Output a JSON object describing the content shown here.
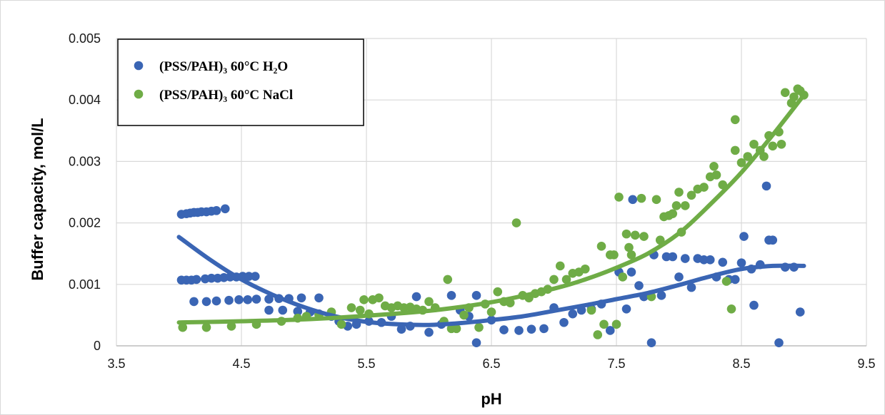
{
  "chart_data": {
    "type": "scatter",
    "title": "",
    "xlabel": "pH",
    "ylabel": "Buffer capacity, mol/L",
    "xlim": [
      3.5,
      9.5
    ],
    "ylim": [
      0,
      0.005
    ],
    "x_ticks": [
      "3.5",
      "4.5",
      "5.5",
      "6.5",
      "7.5",
      "8.5",
      "9.5"
    ],
    "y_ticks": [
      "0",
      "0.001",
      "0.002",
      "0.003",
      "0.004",
      "0.005"
    ],
    "grid": true,
    "legend_position": "top-left",
    "trendline": "polynomial",
    "series": [
      {
        "name": "(PSS/PAH)₃ 60°C H₂O",
        "color": "#3a65b4",
        "points": [
          [
            4.02,
            0.00214
          ],
          [
            4.06,
            0.00215
          ],
          [
            4.09,
            0.00216
          ],
          [
            4.12,
            0.00217
          ],
          [
            4.15,
            0.00217
          ],
          [
            4.18,
            0.00218
          ],
          [
            4.22,
            0.00218
          ],
          [
            4.26,
            0.00219
          ],
          [
            4.3,
            0.0022
          ],
          [
            4.37,
            0.00223
          ],
          [
            4.02,
            0.00107
          ],
          [
            4.06,
            0.00107
          ],
          [
            4.1,
            0.00107
          ],
          [
            4.14,
            0.00108
          ],
          [
            4.21,
            0.00109
          ],
          [
            4.26,
            0.0011
          ],
          [
            4.31,
            0.0011
          ],
          [
            4.36,
            0.00111
          ],
          [
            4.41,
            0.00112
          ],
          [
            4.46,
            0.00112
          ],
          [
            4.51,
            0.00113
          ],
          [
            4.56,
            0.00113
          ],
          [
            4.61,
            0.00113
          ],
          [
            4.12,
            0.00072
          ],
          [
            4.22,
            0.00072
          ],
          [
            4.3,
            0.00073
          ],
          [
            4.4,
            0.00074
          ],
          [
            4.48,
            0.00075
          ],
          [
            4.55,
            0.00075
          ],
          [
            4.62,
            0.00076
          ],
          [
            4.72,
            0.00076
          ],
          [
            4.8,
            0.00077
          ],
          [
            4.88,
            0.00077
          ],
          [
            4.98,
            0.00078
          ],
          [
            5.12,
            0.00078
          ],
          [
            4.72,
            0.00058
          ],
          [
            4.83,
            0.00058
          ],
          [
            4.95,
            0.00056
          ],
          [
            5.05,
            0.00055
          ],
          [
            5.12,
            0.00052
          ],
          [
            5.22,
            0.00048
          ],
          [
            5.28,
            0.0004
          ],
          [
            5.35,
            0.00032
          ],
          [
            5.42,
            0.00035
          ],
          [
            5.52,
            0.0004
          ],
          [
            5.62,
            0.00038
          ],
          [
            5.7,
            0.00048
          ],
          [
            5.78,
            0.00027
          ],
          [
            5.85,
            0.00032
          ],
          [
            5.9,
            0.0008
          ],
          [
            6.0,
            0.00022
          ],
          [
            6.1,
            0.00035
          ],
          [
            6.18,
            0.00082
          ],
          [
            6.25,
            0.00058
          ],
          [
            6.32,
            0.00048
          ],
          [
            6.38,
            0.00082
          ],
          [
            6.38,
            5e-05
          ],
          [
            6.5,
            0.00042
          ],
          [
            6.6,
            0.00026
          ],
          [
            6.72,
            0.00025
          ],
          [
            6.82,
            0.00027
          ],
          [
            6.92,
            0.00028
          ],
          [
            7.0,
            0.00062
          ],
          [
            7.08,
            0.00038
          ],
          [
            7.15,
            0.00052
          ],
          [
            7.22,
            0.00058
          ],
          [
            7.3,
            0.0006
          ],
          [
            7.38,
            0.00068
          ],
          [
            7.45,
            0.00025
          ],
          [
            7.52,
            0.0012
          ],
          [
            7.58,
            0.0006
          ],
          [
            7.62,
            0.0012
          ],
          [
            7.68,
            0.00098
          ],
          [
            7.72,
            0.0008
          ],
          [
            7.78,
            5e-05
          ],
          [
            7.8,
            0.00148
          ],
          [
            7.86,
            0.00082
          ],
          [
            7.9,
            0.00145
          ],
          [
            7.95,
            0.00145
          ],
          [
            8.0,
            0.00112
          ],
          [
            8.05,
            0.00142
          ],
          [
            8.1,
            0.00095
          ],
          [
            8.15,
            0.00142
          ],
          [
            8.2,
            0.0014
          ],
          [
            8.25,
            0.0014
          ],
          [
            8.3,
            0.00112
          ],
          [
            8.35,
            0.00136
          ],
          [
            8.4,
            0.00108
          ],
          [
            8.45,
            0.00108
          ],
          [
            8.5,
            0.00135
          ],
          [
            8.52,
            0.00178
          ],
          [
            8.58,
            0.00125
          ],
          [
            8.6,
            0.00066
          ],
          [
            8.65,
            0.00132
          ],
          [
            8.7,
            0.0026
          ],
          [
            8.72,
            0.00172
          ],
          [
            8.75,
            0.00172
          ],
          [
            8.8,
            5e-05
          ],
          [
            8.85,
            0.00128
          ],
          [
            8.92,
            0.00128
          ],
          [
            8.97,
            0.00055
          ],
          [
            7.63,
            0.00238
          ]
        ],
        "trend": [
          [
            4.0,
            0.00177
          ],
          [
            4.25,
            0.0014
          ],
          [
            4.5,
            0.00108
          ],
          [
            4.75,
            0.00083
          ],
          [
            5.0,
            0.00063
          ],
          [
            5.25,
            0.00048
          ],
          [
            5.5,
            0.00039
          ],
          [
            5.75,
            0.00035
          ],
          [
            6.0,
            0.00034
          ],
          [
            6.25,
            0.00037
          ],
          [
            6.5,
            0.00042
          ],
          [
            6.75,
            0.00048
          ],
          [
            7.0,
            0.00057
          ],
          [
            7.25,
            0.00066
          ],
          [
            7.5,
            0.00076
          ],
          [
            7.75,
            0.00086
          ],
          [
            8.0,
            0.00099
          ],
          [
            8.25,
            0.00113
          ],
          [
            8.5,
            0.00125
          ],
          [
            8.75,
            0.0013
          ],
          [
            9.0,
            0.0013
          ]
        ]
      },
      {
        "name": "(PSS/PAH)₃ 60°C NaCl",
        "color": "#6fac46",
        "points": [
          [
            4.03,
            0.0003
          ],
          [
            4.22,
            0.0003
          ],
          [
            4.42,
            0.00032
          ],
          [
            4.62,
            0.00035
          ],
          [
            4.82,
            0.0004
          ],
          [
            4.95,
            0.00045
          ],
          [
            5.02,
            0.00048
          ],
          [
            5.12,
            0.0005
          ],
          [
            5.22,
            0.00055
          ],
          [
            5.3,
            0.00035
          ],
          [
            5.38,
            0.00062
          ],
          [
            5.45,
            0.00058
          ],
          [
            5.48,
            0.00075
          ],
          [
            5.52,
            0.00052
          ],
          [
            5.55,
            0.00075
          ],
          [
            5.6,
            0.00078
          ],
          [
            5.65,
            0.00065
          ],
          [
            5.7,
            0.00062
          ],
          [
            5.75,
            0.00065
          ],
          [
            5.8,
            0.00062
          ],
          [
            5.85,
            0.00063
          ],
          [
            5.9,
            0.0006
          ],
          [
            5.95,
            0.00058
          ],
          [
            6.0,
            0.00072
          ],
          [
            6.05,
            0.00062
          ],
          [
            6.12,
            0.0004
          ],
          [
            6.15,
            0.00108
          ],
          [
            6.18,
            0.00028
          ],
          [
            6.22,
            0.00028
          ],
          [
            6.28,
            0.0005
          ],
          [
            6.32,
            0.00062
          ],
          [
            6.4,
            0.0003
          ],
          [
            6.45,
            0.00068
          ],
          [
            6.5,
            0.00055
          ],
          [
            6.55,
            0.00088
          ],
          [
            6.6,
            0.00072
          ],
          [
            6.65,
            0.0007
          ],
          [
            6.7,
            0.002
          ],
          [
            6.75,
            0.00082
          ],
          [
            6.8,
            0.00078
          ],
          [
            6.85,
            0.00085
          ],
          [
            6.9,
            0.00088
          ],
          [
            6.95,
            0.00092
          ],
          [
            7.0,
            0.00108
          ],
          [
            7.05,
            0.0013
          ],
          [
            7.1,
            0.00108
          ],
          [
            7.15,
            0.00118
          ],
          [
            7.2,
            0.0012
          ],
          [
            7.25,
            0.00125
          ],
          [
            7.3,
            0.00058
          ],
          [
            7.35,
            0.00018
          ],
          [
            7.38,
            0.00162
          ],
          [
            7.4,
            0.00035
          ],
          [
            7.45,
            0.00148
          ],
          [
            7.48,
            0.00148
          ],
          [
            7.5,
            0.00035
          ],
          [
            7.52,
            0.00242
          ],
          [
            7.55,
            0.00112
          ],
          [
            7.58,
            0.00182
          ],
          [
            7.6,
            0.0016
          ],
          [
            7.62,
            0.00148
          ],
          [
            7.65,
            0.0018
          ],
          [
            7.7,
            0.0024
          ],
          [
            7.72,
            0.00178
          ],
          [
            7.78,
            0.0008
          ],
          [
            7.82,
            0.00238
          ],
          [
            7.85,
            0.00172
          ],
          [
            7.88,
            0.0021
          ],
          [
            7.92,
            0.00212
          ],
          [
            7.95,
            0.00215
          ],
          [
            7.98,
            0.00228
          ],
          [
            8.0,
            0.0025
          ],
          [
            8.02,
            0.00185
          ],
          [
            8.05,
            0.00228
          ],
          [
            8.1,
            0.00245
          ],
          [
            8.15,
            0.00255
          ],
          [
            8.2,
            0.00258
          ],
          [
            8.25,
            0.00275
          ],
          [
            8.28,
            0.00292
          ],
          [
            8.3,
            0.00278
          ],
          [
            8.35,
            0.00262
          ],
          [
            8.38,
            0.00105
          ],
          [
            8.42,
            0.0006
          ],
          [
            8.45,
            0.00318
          ],
          [
            8.45,
            0.00368
          ],
          [
            8.5,
            0.00298
          ],
          [
            8.55,
            0.00308
          ],
          [
            8.6,
            0.00328
          ],
          [
            8.65,
            0.00318
          ],
          [
            8.68,
            0.00308
          ],
          [
            8.72,
            0.00342
          ],
          [
            8.75,
            0.00325
          ],
          [
            8.8,
            0.00348
          ],
          [
            8.82,
            0.00328
          ],
          [
            8.85,
            0.00412
          ],
          [
            8.9,
            0.00395
          ],
          [
            8.92,
            0.00405
          ],
          [
            8.95,
            0.00418
          ],
          [
            8.97,
            0.00415
          ],
          [
            9.0,
            0.00408
          ]
        ],
        "trend": [
          [
            4.0,
            0.00038
          ],
          [
            4.5,
            0.0004
          ],
          [
            5.0,
            0.00043
          ],
          [
            5.5,
            0.00049
          ],
          [
            6.0,
            0.00057
          ],
          [
            6.5,
            0.00071
          ],
          [
            7.0,
            0.00093
          ],
          [
            7.25,
            0.00108
          ],
          [
            7.5,
            0.00127
          ],
          [
            7.75,
            0.0015
          ],
          [
            8.0,
            0.00183
          ],
          [
            8.25,
            0.0023
          ],
          [
            8.5,
            0.00282
          ],
          [
            8.75,
            0.00343
          ],
          [
            9.0,
            0.00408
          ]
        ]
      }
    ]
  }
}
